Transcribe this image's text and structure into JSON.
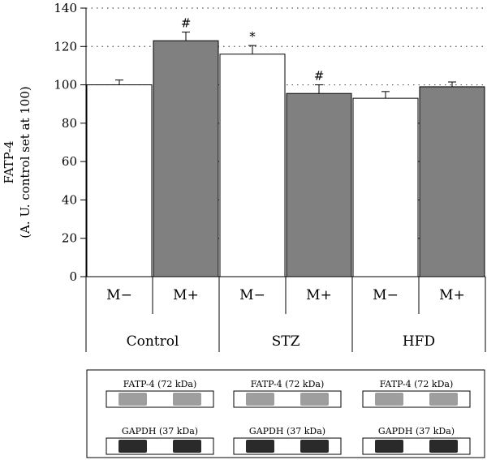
{
  "chart_data": {
    "type": "bar",
    "ylabel_line1": "FATP-4",
    "ylabel_line2": "(A. U. control set at 100)",
    "ylim": [
      0,
      140
    ],
    "yticks": [
      0,
      20,
      40,
      60,
      80,
      100,
      120,
      140
    ],
    "grid": "horizontal-dotted",
    "groups": [
      "Control",
      "STZ",
      "HFD"
    ],
    "categories": [
      "M−",
      "M+",
      "M−",
      "M+",
      "M−",
      "M+"
    ],
    "values": [
      100,
      123,
      116,
      95.5,
      93,
      99
    ],
    "errors": [
      2.5,
      4.5,
      4.5,
      4.5,
      3.5,
      2.5
    ],
    "annotations": [
      "",
      "#",
      "*",
      "#",
      "",
      ""
    ],
    "bar_colors": [
      "#ffffff",
      "#808080",
      "#ffffff",
      "#808080",
      "#ffffff",
      "#808080"
    ]
  },
  "blots": {
    "panels": [
      {
        "top_label": "FATP-4 (72 kDa)",
        "bottom_label": "GAPDH (37 kDa)"
      },
      {
        "top_label": "FATP-4 (72 kDa)",
        "bottom_label": "GAPDH (37 kDa)"
      },
      {
        "top_label": "FATP-4 (72 kDa)",
        "bottom_label": "GAPDH (37 kDa)"
      }
    ]
  }
}
